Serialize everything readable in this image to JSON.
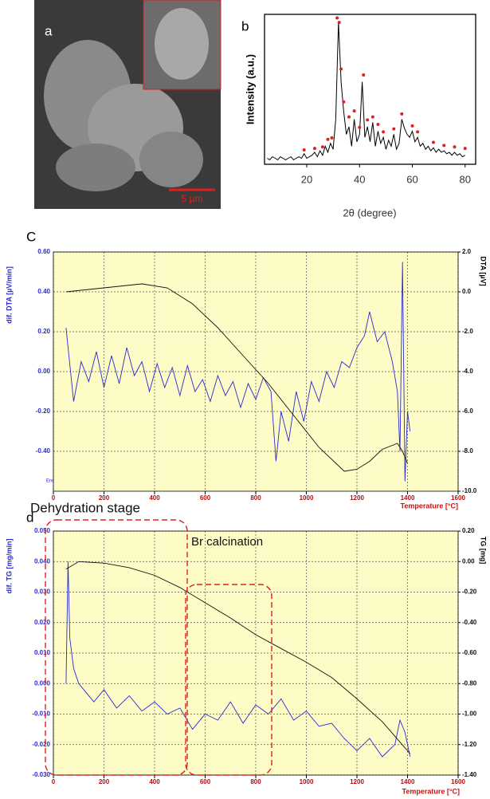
{
  "image_panel": {
    "label": "a",
    "scale_bar": "5 µm"
  },
  "chart_data": [
    {
      "type": "line",
      "panel_label": "b",
      "x_label": "2θ (degree)",
      "y_label": "Intensity (a.u.)",
      "xlim": [
        4,
        84
      ],
      "xticks": [
        20,
        40,
        60,
        80
      ],
      "ylim": [
        0,
        100
      ],
      "grid": false,
      "series": [
        {
          "color": "#000000",
          "x": [
            5,
            6,
            7,
            8,
            9,
            10,
            11,
            12,
            13,
            14,
            15,
            16,
            17,
            18,
            19,
            20,
            21,
            22,
            23,
            24,
            25,
            26,
            27,
            28,
            29,
            30,
            31,
            32,
            33,
            34,
            35,
            36,
            37,
            38,
            39,
            40,
            41,
            42,
            43,
            44,
            45,
            46,
            47,
            48,
            49,
            50,
            51,
            52,
            53,
            54,
            55,
            56,
            57,
            58,
            59,
            60,
            61,
            62,
            63,
            64,
            65,
            66,
            67,
            68,
            69,
            70,
            71,
            72,
            73,
            74,
            75,
            76,
            77,
            78,
            79,
            80
          ],
          "values": [
            4,
            3,
            5,
            4,
            3,
            5,
            4,
            3,
            4,
            5,
            3,
            4,
            5,
            4,
            7,
            4,
            5,
            6,
            8,
            5,
            9,
            6,
            12,
            8,
            14,
            10,
            30,
            95,
            55,
            35,
            20,
            25,
            12,
            30,
            15,
            20,
            55,
            18,
            25,
            15,
            28,
            12,
            22,
            14,
            18,
            10,
            16,
            12,
            20,
            10,
            14,
            30,
            24,
            20,
            18,
            22,
            15,
            18,
            12,
            14,
            10,
            12,
            9,
            11,
            8,
            10,
            8,
            9,
            7,
            8,
            6,
            8,
            6,
            7,
            5,
            6
          ]
        },
        {
          "color": "#e02020",
          "mode": "markers",
          "x": [
            19,
            23,
            26,
            28,
            29.5,
            31.5,
            32.3,
            33,
            34,
            36,
            38,
            40,
            41.5,
            43,
            45,
            47,
            49,
            53,
            56,
            60,
            62,
            68,
            72,
            76,
            80
          ],
          "values": [
            8,
            9,
            10,
            15,
            16,
            96,
            93,
            62,
            40,
            30,
            34,
            23,
            58,
            28,
            30,
            25,
            20,
            22,
            32,
            24,
            20,
            13,
            11,
            10,
            9
          ]
        }
      ]
    },
    {
      "type": "line",
      "panel_label": "C",
      "y_label": "dif. DTA  [µV/min]",
      "y2_label": "DTA  [µV]",
      "x_label": "Temperature  [°C]",
      "endo_label": "Endo",
      "plot_background": "#fdfcc6",
      "grid": true,
      "xlim": [
        0,
        1600
      ],
      "xticks": [
        0,
        200,
        400,
        600,
        800,
        1000,
        1200,
        1400,
        1600
      ],
      "ylim": [
        -0.6,
        0.6
      ],
      "yticks": [
        {
          "value": 0.6,
          "label": "0.60"
        },
        {
          "value": 0.4,
          "label": "0.40"
        },
        {
          "value": 0.2,
          "label": "0.20"
        },
        {
          "value": 0,
          "label": "0.00"
        },
        {
          "value": -0.2,
          "label": "-0.20"
        },
        {
          "value": -0.4,
          "label": "-0.40"
        }
      ],
      "y2lim": [
        -10,
        2
      ],
      "y2ticks": [
        {
          "value": 2,
          "label": "2.0"
        },
        {
          "value": 0,
          "label": "0.0"
        },
        {
          "value": -2,
          "label": "-2.0"
        },
        {
          "value": -4,
          "label": "-4.0"
        },
        {
          "value": -6,
          "label": "-6.0"
        },
        {
          "value": -8,
          "label": "-8.0"
        },
        {
          "value": -10,
          "label": "-10.0"
        }
      ],
      "series": [
        {
          "color": "#2a2ad0",
          "x": [
            50,
            80,
            110,
            140,
            170,
            200,
            230,
            260,
            290,
            320,
            350,
            380,
            410,
            440,
            470,
            500,
            530,
            560,
            590,
            620,
            650,
            680,
            710,
            740,
            770,
            800,
            830,
            860,
            880,
            900,
            930,
            960,
            990,
            1020,
            1050,
            1080,
            1110,
            1140,
            1170,
            1200,
            1230,
            1250,
            1280,
            1310,
            1340,
            1360,
            1370,
            1380,
            1390,
            1400,
            1410
          ],
          "values": [
            0.22,
            -0.15,
            0.05,
            -0.05,
            0.1,
            -0.08,
            0.08,
            -0.06,
            0.12,
            -0.02,
            0.05,
            -0.1,
            0.04,
            -0.08,
            0.02,
            -0.12,
            0.03,
            -0.1,
            -0.04,
            -0.15,
            -0.02,
            -0.12,
            -0.05,
            -0.18,
            -0.06,
            -0.14,
            -0.03,
            -0.1,
            -0.45,
            -0.2,
            -0.35,
            -0.1,
            -0.25,
            -0.05,
            -0.15,
            0.0,
            -0.08,
            0.05,
            0.02,
            0.12,
            0.18,
            0.3,
            0.15,
            0.2,
            0.05,
            -0.1,
            -0.4,
            0.55,
            -0.55,
            -0.2,
            -0.3
          ]
        },
        {
          "color": "#111111",
          "axis": "y2",
          "x": [
            50,
            200,
            350,
            450,
            550,
            650,
            750,
            850,
            950,
            1050,
            1150,
            1200,
            1250,
            1300,
            1360,
            1380,
            1400
          ],
          "values": [
            0.0,
            0.2,
            0.4,
            0.2,
            -0.6,
            -1.8,
            -3.2,
            -4.6,
            -6.2,
            -7.8,
            -9.0,
            -8.9,
            -8.5,
            -7.9,
            -7.6,
            -8.0,
            -8.6
          ]
        }
      ]
    },
    {
      "type": "line",
      "panel_label": "d",
      "y_label": "dif. TG  [mg/min]",
      "y2_label": "TG  [mg]",
      "x_label": "Temperature  [°C]",
      "annotations": [
        "Dehydration  stage",
        "Br calcination"
      ],
      "plot_background": "#fdfcc6",
      "grid": true,
      "xlim": [
        0,
        1600
      ],
      "xticks": [
        0,
        200,
        400,
        600,
        800,
        1000,
        1200,
        1400,
        1600
      ],
      "ylim": [
        -0.03,
        0.05
      ],
      "yticks": [
        {
          "value": 0.05,
          "label": "0.050"
        },
        {
          "value": 0.04,
          "label": "0.040"
        },
        {
          "value": 0.03,
          "label": "0.030"
        },
        {
          "value": 0.02,
          "label": "0.020"
        },
        {
          "value": 0.01,
          "label": "0.010"
        },
        {
          "value": 0,
          "label": "0.000"
        },
        {
          "value": -0.01,
          "label": "-0.010"
        },
        {
          "value": -0.02,
          "label": "-0.020"
        },
        {
          "value": -0.03,
          "label": "-0.030"
        }
      ],
      "y2lim": [
        -1.4,
        0.2
      ],
      "y2ticks": [
        {
          "value": 0.2,
          "label": "0.20"
        },
        {
          "value": 0,
          "label": "0.00"
        },
        {
          "value": -0.2,
          "label": "-0.20"
        },
        {
          "value": -0.4,
          "label": "-0.40"
        },
        {
          "value": -0.6,
          "label": "-0.60"
        },
        {
          "value": -0.8,
          "label": "-0.80"
        },
        {
          "value": -1,
          "label": "-1.00"
        },
        {
          "value": -1.2,
          "label": "-1.20"
        },
        {
          "value": -1.4,
          "label": "-1.40"
        }
      ],
      "series": [
        {
          "color": "#2a2ad0",
          "x": [
            50,
            58,
            65,
            80,
            100,
            130,
            160,
            200,
            250,
            300,
            350,
            400,
            450,
            500,
            550,
            600,
            650,
            700,
            750,
            800,
            850,
            900,
            950,
            1000,
            1050,
            1100,
            1150,
            1200,
            1250,
            1300,
            1350,
            1370,
            1390,
            1410
          ],
          "values": [
            0.0,
            0.04,
            0.015,
            0.005,
            0.0,
            -0.003,
            -0.006,
            -0.002,
            -0.008,
            -0.004,
            -0.009,
            -0.006,
            -0.01,
            -0.008,
            -0.015,
            -0.01,
            -0.012,
            -0.006,
            -0.013,
            -0.007,
            -0.01,
            -0.005,
            -0.012,
            -0.009,
            -0.014,
            -0.013,
            -0.018,
            -0.022,
            -0.018,
            -0.024,
            -0.02,
            -0.012,
            -0.016,
            -0.024
          ]
        },
        {
          "color": "#111111",
          "axis": "y2",
          "x": [
            50,
            100,
            200,
            300,
            400,
            500,
            600,
            700,
            800,
            900,
            1000,
            1100,
            1200,
            1300,
            1410
          ],
          "values": [
            -0.05,
            0.0,
            -0.01,
            -0.04,
            -0.09,
            -0.17,
            -0.27,
            -0.37,
            -0.48,
            -0.57,
            -0.66,
            -0.76,
            -0.9,
            -1.05,
            -1.26
          ]
        }
      ]
    }
  ]
}
